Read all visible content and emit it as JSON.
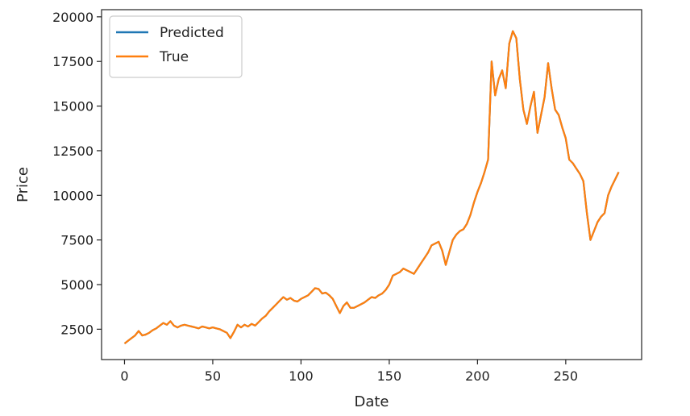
{
  "chart_data": {
    "type": "line",
    "xlabel": "Date",
    "ylabel": "Price",
    "xlim": [
      -13,
      293
    ],
    "ylim": [
      800,
      20400
    ],
    "xticks": [
      0,
      50,
      100,
      150,
      200,
      250
    ],
    "yticks": [
      2500,
      5000,
      7500,
      10000,
      12500,
      15000,
      17500,
      20000
    ],
    "legend_position": "top-left",
    "grid": false,
    "series": [
      {
        "name": "Predicted",
        "color": "#1f77b4",
        "x": [
          0,
          2,
          4,
          6,
          8,
          10,
          12,
          14,
          16,
          18,
          20,
          22,
          24,
          26,
          28,
          30,
          32,
          34,
          36,
          38,
          40,
          42,
          44,
          46,
          48,
          50,
          52,
          54,
          56,
          58,
          60,
          62,
          64,
          66,
          68,
          70,
          72,
          74,
          76,
          78,
          80,
          82,
          84,
          86,
          88,
          90,
          92,
          94,
          96,
          98,
          100,
          102,
          104,
          106,
          108,
          110,
          112,
          114,
          116,
          118,
          120,
          122,
          124,
          126,
          128,
          130,
          132,
          134,
          136,
          138,
          140,
          142,
          144,
          146,
          148,
          150,
          152,
          154,
          156,
          158,
          160,
          162,
          164,
          166,
          168,
          170,
          172,
          174,
          176,
          178,
          180,
          182,
          184,
          186,
          188,
          190,
          192,
          194,
          196,
          198,
          200,
          202,
          204,
          206,
          208,
          210,
          212,
          214,
          216,
          218,
          220,
          222,
          224,
          226,
          228,
          230,
          232,
          234,
          236,
          238,
          240,
          242,
          244,
          246,
          248,
          250,
          252,
          254,
          256,
          258,
          260,
          262,
          264,
          266,
          268,
          270,
          272,
          274,
          276,
          278,
          280
        ],
        "y": [
          1700,
          1850,
          2000,
          2150,
          2400,
          2150,
          2200,
          2300,
          2450,
          2550,
          2700,
          2850,
          2750,
          2950,
          2700,
          2600,
          2700,
          2750,
          2700,
          2650,
          2600,
          2550,
          2650,
          2600,
          2550,
          2600,
          2550,
          2500,
          2400,
          2300,
          2000,
          2350,
          2750,
          2600,
          2750,
          2650,
          2800,
          2700,
          2900,
          3100,
          3250,
          3500,
          3700,
          3900,
          4100,
          4300,
          4150,
          4250,
          4100,
          4050,
          4200,
          4300,
          4400,
          4600,
          4800,
          4750,
          4500,
          4550,
          4400,
          4200,
          3800,
          3400,
          3800,
          4000,
          3700,
          3700,
          3800,
          3900,
          4000,
          4150,
          4300,
          4250,
          4400,
          4500,
          4700,
          5000,
          5500,
          5600,
          5700,
          5900,
          5800,
          5700,
          5600,
          5900,
          6200,
          6500,
          6800,
          7200,
          7300,
          7400,
          6900,
          6100,
          6800,
          7500,
          7800,
          8000,
          8100,
          8400,
          8900,
          9600,
          10200,
          10700,
          11300,
          12000,
          17500,
          15600,
          16500,
          17000,
          16000,
          18500,
          19200,
          18800,
          16500,
          14800,
          14000,
          15000,
          15800,
          13500,
          14500,
          15500,
          17400,
          16000,
          14800,
          14500,
          13800,
          13200,
          12000,
          11800,
          11500,
          11200,
          10800,
          9000,
          7500,
          8000,
          8500,
          8800,
          9000,
          10000,
          10500,
          10900,
          11300
        ]
      },
      {
        "name": "True",
        "color": "#ff7f0e",
        "x": [
          0,
          2,
          4,
          6,
          8,
          10,
          12,
          14,
          16,
          18,
          20,
          22,
          24,
          26,
          28,
          30,
          32,
          34,
          36,
          38,
          40,
          42,
          44,
          46,
          48,
          50,
          52,
          54,
          56,
          58,
          60,
          62,
          64,
          66,
          68,
          70,
          72,
          74,
          76,
          78,
          80,
          82,
          84,
          86,
          88,
          90,
          92,
          94,
          96,
          98,
          100,
          102,
          104,
          106,
          108,
          110,
          112,
          114,
          116,
          118,
          120,
          122,
          124,
          126,
          128,
          130,
          132,
          134,
          136,
          138,
          140,
          142,
          144,
          146,
          148,
          150,
          152,
          154,
          156,
          158,
          160,
          162,
          164,
          166,
          168,
          170,
          172,
          174,
          176,
          178,
          180,
          182,
          184,
          186,
          188,
          190,
          192,
          194,
          196,
          198,
          200,
          202,
          204,
          206,
          208,
          210,
          212,
          214,
          216,
          218,
          220,
          222,
          224,
          226,
          228,
          230,
          232,
          234,
          236,
          238,
          240,
          242,
          244,
          246,
          248,
          250,
          252,
          254,
          256,
          258,
          260,
          262,
          264,
          266,
          268,
          270,
          272,
          274,
          276,
          278,
          280
        ],
        "y": [
          1700,
          1850,
          2000,
          2150,
          2400,
          2150,
          2200,
          2300,
          2450,
          2550,
          2700,
          2850,
          2750,
          2950,
          2700,
          2600,
          2700,
          2750,
          2700,
          2650,
          2600,
          2550,
          2650,
          2600,
          2550,
          2600,
          2550,
          2500,
          2400,
          2300,
          2000,
          2350,
          2750,
          2600,
          2750,
          2650,
          2800,
          2700,
          2900,
          3100,
          3250,
          3500,
          3700,
          3900,
          4100,
          4300,
          4150,
          4250,
          4100,
          4050,
          4200,
          4300,
          4400,
          4600,
          4800,
          4750,
          4500,
          4550,
          4400,
          4200,
          3800,
          3400,
          3800,
          4000,
          3700,
          3700,
          3800,
          3900,
          4000,
          4150,
          4300,
          4250,
          4400,
          4500,
          4700,
          5000,
          5500,
          5600,
          5700,
          5900,
          5800,
          5700,
          5600,
          5900,
          6200,
          6500,
          6800,
          7200,
          7300,
          7400,
          6900,
          6100,
          6800,
          7500,
          7800,
          8000,
          8100,
          8400,
          8900,
          9600,
          10200,
          10700,
          11300,
          12000,
          17500,
          15600,
          16500,
          17000,
          16000,
          18500,
          19200,
          18800,
          16500,
          14800,
          14000,
          15000,
          15800,
          13500,
          14500,
          15500,
          17400,
          16000,
          14800,
          14500,
          13800,
          13200,
          12000,
          11800,
          11500,
          11200,
          10800,
          9000,
          7500,
          8000,
          8500,
          8800,
          9000,
          10000,
          10500,
          10900,
          11300
        ]
      }
    ]
  }
}
